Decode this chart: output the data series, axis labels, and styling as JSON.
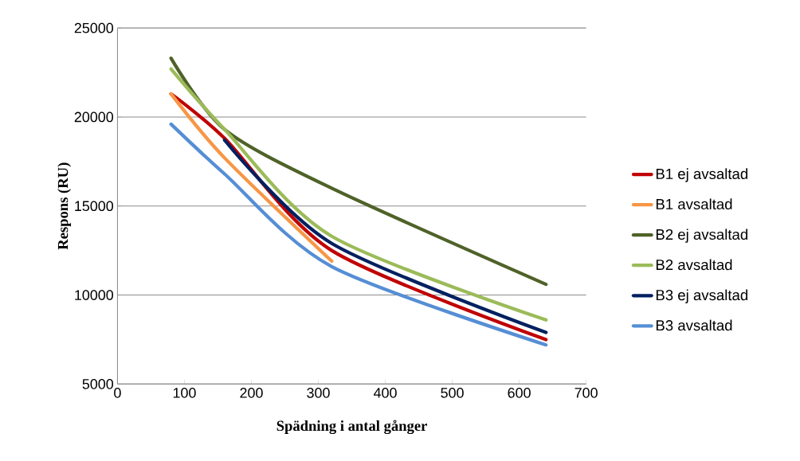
{
  "chart_data": {
    "type": "line",
    "xlabel": "Spädning i antal gånger",
    "ylabel": "Respons (RU)",
    "xlim": [
      0,
      700
    ],
    "xticks": [
      0,
      100,
      200,
      300,
      400,
      500,
      600,
      700
    ],
    "ylim": [
      5000,
      25000
    ],
    "yticks": [
      5000,
      10000,
      15000,
      20000,
      25000
    ],
    "grid": "y",
    "legend": "right",
    "marker": "none",
    "line_style": "solid",
    "series": [
      {
        "name": "B1 ej avsaltad",
        "color": "#c00000",
        "x": [
          80,
          160,
          320,
          640
        ],
        "values": [
          21300,
          18800,
          12500,
          7500
        ]
      },
      {
        "name": "B1 avsaltad",
        "color": "#f79646",
        "x": [
          80,
          160,
          320
        ],
        "values": [
          21300,
          17700,
          11900
        ]
      },
      {
        "name": "B2 ej avsaltad",
        "color": "#4f6228",
        "x": [
          80,
          160,
          320,
          640
        ],
        "values": [
          23300,
          19300,
          16000,
          10600
        ]
      },
      {
        "name": "B2 avsaltad",
        "color": "#9bbb59",
        "x": [
          80,
          160,
          320,
          640
        ],
        "values": [
          22700,
          19300,
          13300,
          8600
        ]
      },
      {
        "name": "B3 ej avsaltad",
        "color": "#002060",
        "x": [
          160,
          320,
          640
        ],
        "values": [
          18700,
          12900,
          7900
        ]
      },
      {
        "name": "B3 avsaltad",
        "color": "#558ed5",
        "x": [
          80,
          160,
          320,
          640
        ],
        "values": [
          19600,
          16800,
          11600,
          7200
        ]
      }
    ]
  }
}
